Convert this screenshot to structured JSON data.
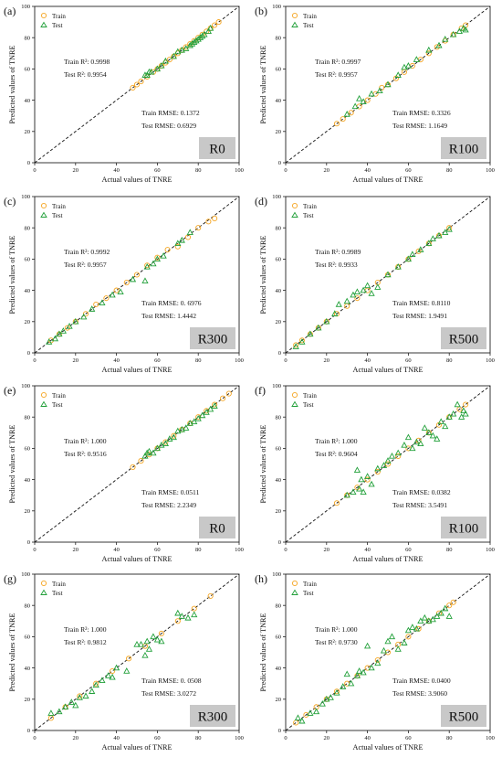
{
  "figure": {
    "x_axis_label": "Actual values of TNRE",
    "y_axis_label": "Predicted values of TNRE",
    "legend": {
      "train_label": "Train",
      "test_label": "Test",
      "position": "top-left"
    },
    "train_color": "#f5a623",
    "test_color": "#22a03a",
    "badge_color": "#c8c8c8",
    "ticks": [
      "0",
      "20",
      "40",
      "60",
      "80",
      "100"
    ]
  },
  "chart_data": [
    {
      "type": "scatter",
      "panel_label": "(a)",
      "badge": "R0",
      "xlim": [
        0,
        100
      ],
      "ylim": [
        0,
        100
      ],
      "grid": false,
      "reference_line": "y = x",
      "metrics": {
        "train_r2": "Train R²: 0.9998",
        "test_r2": "Test R²: 0.9954",
        "train_rmse": "Train RMSE: 0.1372",
        "test_rmse": "Test RMSE: 0.6929"
      },
      "train": {
        "x": [
          48,
          50,
          52,
          55,
          58,
          60,
          62,
          64,
          66,
          68,
          70,
          72,
          74,
          76,
          78,
          80,
          82,
          84,
          86,
          88,
          90
        ],
        "y": [
          48,
          50,
          52,
          55,
          58,
          60,
          62,
          64,
          66,
          68,
          70,
          72,
          74,
          76,
          78,
          80,
          82,
          84,
          86,
          88,
          90
        ]
      },
      "test": {
        "x": [
          54,
          55,
          56,
          57,
          60,
          62,
          64,
          68,
          70,
          72,
          74,
          76,
          77,
          78,
          79,
          80,
          81,
          82,
          83,
          85,
          86
        ],
        "y": [
          56,
          56,
          58,
          58,
          60,
          62,
          65,
          68,
          71,
          72,
          73,
          75,
          76,
          77,
          78,
          79,
          80,
          81,
          82,
          84,
          86
        ]
      }
    },
    {
      "type": "scatter",
      "panel_label": "(b)",
      "badge": "R100",
      "xlim": [
        0,
        100
      ],
      "ylim": [
        0,
        100
      ],
      "grid": false,
      "reference_line": "y = x",
      "metrics": {
        "train_r2": "Train R²: 0.9997",
        "test_r2": "Test R²: 0.9957",
        "train_rmse": "Train RMSE: 0.3326",
        "test_rmse": "Test RMSE: 1.1649"
      },
      "train": {
        "x": [
          25,
          28,
          32,
          36,
          40,
          44,
          47,
          50,
          54,
          58,
          62,
          66,
          70,
          74,
          78,
          82,
          86,
          88
        ],
        "y": [
          25,
          28,
          32,
          36,
          40,
          44,
          48,
          50,
          54,
          58,
          62,
          66,
          70,
          74,
          78,
          82,
          86,
          88
        ]
      },
      "test": {
        "x": [
          30,
          34,
          36,
          38,
          42,
          46,
          50,
          55,
          58,
          60,
          64,
          70,
          75,
          78,
          82,
          85,
          87,
          88
        ],
        "y": [
          31,
          36,
          41,
          39,
          44,
          46,
          50,
          56,
          61,
          62,
          66,
          72,
          75,
          79,
          82,
          84,
          86,
          85
        ]
      }
    },
    {
      "type": "scatter",
      "panel_label": "(c)",
      "badge": "R300",
      "xlim": [
        0,
        100
      ],
      "ylim": [
        0,
        100
      ],
      "grid": false,
      "reference_line": "y = x",
      "metrics": {
        "train_r2": "Train R²: 0.9992",
        "test_r2": "Test R²: 0.9957",
        "train_rmse": "Train RMSE: 0. 6976",
        "test_rmse": "Test RMSE: 1.4442"
      },
      "train": {
        "x": [
          8,
          12,
          16,
          20,
          25,
          30,
          35,
          40,
          45,
          50,
          55,
          60,
          65,
          70,
          75,
          80,
          85,
          88
        ],
        "y": [
          8,
          12,
          16,
          20,
          25,
          31,
          35,
          40,
          45,
          50,
          56,
          61,
          66,
          68,
          74,
          80,
          84,
          86
        ]
      },
      "test": {
        "x": [
          7,
          10,
          12,
          14,
          17,
          20,
          24,
          28,
          33,
          38,
          42,
          48,
          54,
          55,
          58,
          60,
          63,
          70,
          72,
          76
        ],
        "y": [
          7,
          9,
          12,
          14,
          17,
          20,
          23,
          28,
          32,
          37,
          39,
          47,
          46,
          55,
          57,
          60,
          62,
          70,
          72,
          77
        ]
      }
    },
    {
      "type": "scatter",
      "panel_label": "(d)",
      "badge": "R500",
      "xlim": [
        0,
        100
      ],
      "ylim": [
        0,
        100
      ],
      "grid": false,
      "reference_line": "y = x",
      "metrics": {
        "train_r2": "Train R²: 0.9989",
        "test_r2": "Test R²: 0.9933",
        "train_rmse": "Train RMSE: 0.8110",
        "test_rmse": "Test RMSE: 1.9491"
      },
      "train": {
        "x": [
          5,
          8,
          12,
          16,
          20,
          25,
          30,
          35,
          40,
          45,
          50,
          55,
          60,
          65,
          70,
          75,
          80
        ],
        "y": [
          5,
          8,
          12,
          16,
          20,
          25,
          30,
          35,
          40,
          45,
          50,
          55,
          60,
          65,
          70,
          75,
          80
        ]
      },
      "test": {
        "x": [
          5,
          8,
          12,
          16,
          20,
          24,
          26,
          30,
          33,
          35,
          38,
          40,
          42,
          45,
          50,
          55,
          60,
          62,
          66,
          70,
          72,
          75,
          78,
          80
        ],
        "y": [
          4,
          7,
          12,
          16,
          20,
          25,
          31,
          33,
          37,
          39,
          40,
          43,
          38,
          42,
          50,
          55,
          60,
          63,
          66,
          70,
          73,
          75,
          77,
          79
        ]
      }
    },
    {
      "type": "scatter",
      "panel_label": "(e)",
      "badge": "R0",
      "xlim": [
        0,
        100
      ],
      "ylim": [
        0,
        100
      ],
      "grid": false,
      "reference_line": "y = x",
      "metrics": {
        "train_r2": "Train R²: 1.000",
        "test_r2": "Test R²: 0.9516",
        "train_rmse": "Train RMSE: 0.0511",
        "test_rmse": "Test RMSE: 2.2349"
      },
      "train": {
        "x": [
          48,
          52,
          56,
          60,
          64,
          68,
          72,
          76,
          80,
          84,
          88,
          92,
          95
        ],
        "y": [
          48,
          52,
          56,
          60,
          64,
          68,
          72,
          76,
          80,
          84,
          88,
          92,
          95
        ]
      },
      "test": {
        "x": [
          54,
          55,
          56,
          58,
          60,
          62,
          64,
          66,
          68,
          70,
          72,
          74,
          76,
          78,
          80,
          82,
          84,
          86,
          88
        ],
        "y": [
          55,
          57,
          58,
          57,
          60,
          62,
          63,
          66,
          67,
          71,
          72,
          73,
          76,
          77,
          79,
          81,
          83,
          85,
          87
        ]
      }
    },
    {
      "type": "scatter",
      "panel_label": "(f)",
      "badge": "R100",
      "xlim": [
        0,
        100
      ],
      "ylim": [
        0,
        100
      ],
      "grid": false,
      "reference_line": "y = x",
      "metrics": {
        "train_r2": "Train R²: 1.000",
        "test_r2": "Test R²: 0.9604",
        "train_rmse": "Train RMSE: 0.0382",
        "test_rmse": "Test RMSE: 3.5491"
      },
      "train": {
        "x": [
          25,
          30,
          35,
          40,
          45,
          50,
          55,
          60,
          65,
          70,
          75,
          80,
          85,
          88
        ],
        "y": [
          25,
          30,
          35,
          40,
          45,
          50,
          55,
          60,
          65,
          70,
          75,
          80,
          85,
          88
        ]
      },
      "test": {
        "x": [
          30,
          33,
          35,
          36,
          37,
          38,
          40,
          42,
          45,
          48,
          50,
          52,
          55,
          58,
          60,
          62,
          64,
          66,
          68,
          70,
          72,
          74,
          76,
          78,
          80,
          82,
          84,
          86,
          87,
          88
        ],
        "y": [
          30,
          32,
          46,
          34,
          40,
          32,
          42,
          37,
          47,
          49,
          52,
          55,
          57,
          62,
          67,
          60,
          64,
          63,
          73,
          70,
          68,
          66,
          77,
          74,
          80,
          82,
          88,
          80,
          84,
          82
        ]
      }
    },
    {
      "type": "scatter",
      "panel_label": "(g)",
      "badge": "R300",
      "xlim": [
        0,
        100
      ],
      "ylim": [
        0,
        100
      ],
      "grid": false,
      "reference_line": "y = x",
      "metrics": {
        "train_r2": "Train R²: 1.000",
        "test_r2": "Test R²: 0.9812",
        "train_rmse": "Train RMSE: 0. 0508",
        "test_rmse": "Test RMSE: 3.0272"
      },
      "train": {
        "x": [
          8,
          15,
          22,
          30,
          38,
          46,
          54,
          62,
          70,
          78,
          86
        ],
        "y": [
          8,
          15,
          22,
          30,
          38,
          46,
          54,
          62,
          70,
          78,
          86
        ]
      },
      "test": {
        "x": [
          8,
          12,
          15,
          18,
          20,
          22,
          25,
          28,
          30,
          33,
          36,
          38,
          40,
          45,
          50,
          52,
          54,
          55,
          56,
          58,
          60,
          62,
          70,
          72,
          75,
          78
        ],
        "y": [
          11,
          12,
          15,
          18,
          16,
          21,
          22,
          25,
          29,
          32,
          35,
          34,
          40,
          38,
          55,
          55,
          48,
          57,
          52,
          60,
          58,
          57,
          75,
          73,
          72,
          74
        ]
      }
    },
    {
      "type": "scatter",
      "panel_label": "(h)",
      "badge": "R500",
      "xlim": [
        0,
        100
      ],
      "ylim": [
        0,
        100
      ],
      "grid": false,
      "reference_line": "y = x",
      "metrics": {
        "train_r2": "Train R²: 1.000",
        "test_r2": "Test R²: 0.9730",
        "train_rmse": "Train RMSE: 0.0400",
        "test_rmse": "Test RMSE: 3.9060"
      },
      "train": {
        "x": [
          5,
          10,
          15,
          20,
          25,
          30,
          35,
          40,
          45,
          50,
          55,
          60,
          65,
          70,
          75,
          80,
          82
        ],
        "y": [
          5,
          10,
          15,
          20,
          25,
          30,
          35,
          40,
          45,
          50,
          55,
          60,
          65,
          70,
          75,
          80,
          82
        ]
      },
      "test": {
        "x": [
          6,
          8,
          12,
          15,
          18,
          20,
          22,
          25,
          28,
          30,
          32,
          35,
          36,
          38,
          40,
          42,
          45,
          48,
          50,
          52,
          55,
          58,
          60,
          62,
          64,
          66,
          68,
          70,
          72,
          74,
          76,
          78,
          80
        ],
        "y": [
          8,
          6,
          11,
          12,
          17,
          20,
          21,
          24,
          28,
          36,
          30,
          35,
          38,
          37,
          54,
          40,
          43,
          51,
          57,
          60,
          52,
          56,
          64,
          66,
          65,
          70,
          72,
          70,
          71,
          73,
          75,
          78,
          73
        ]
      }
    }
  ]
}
